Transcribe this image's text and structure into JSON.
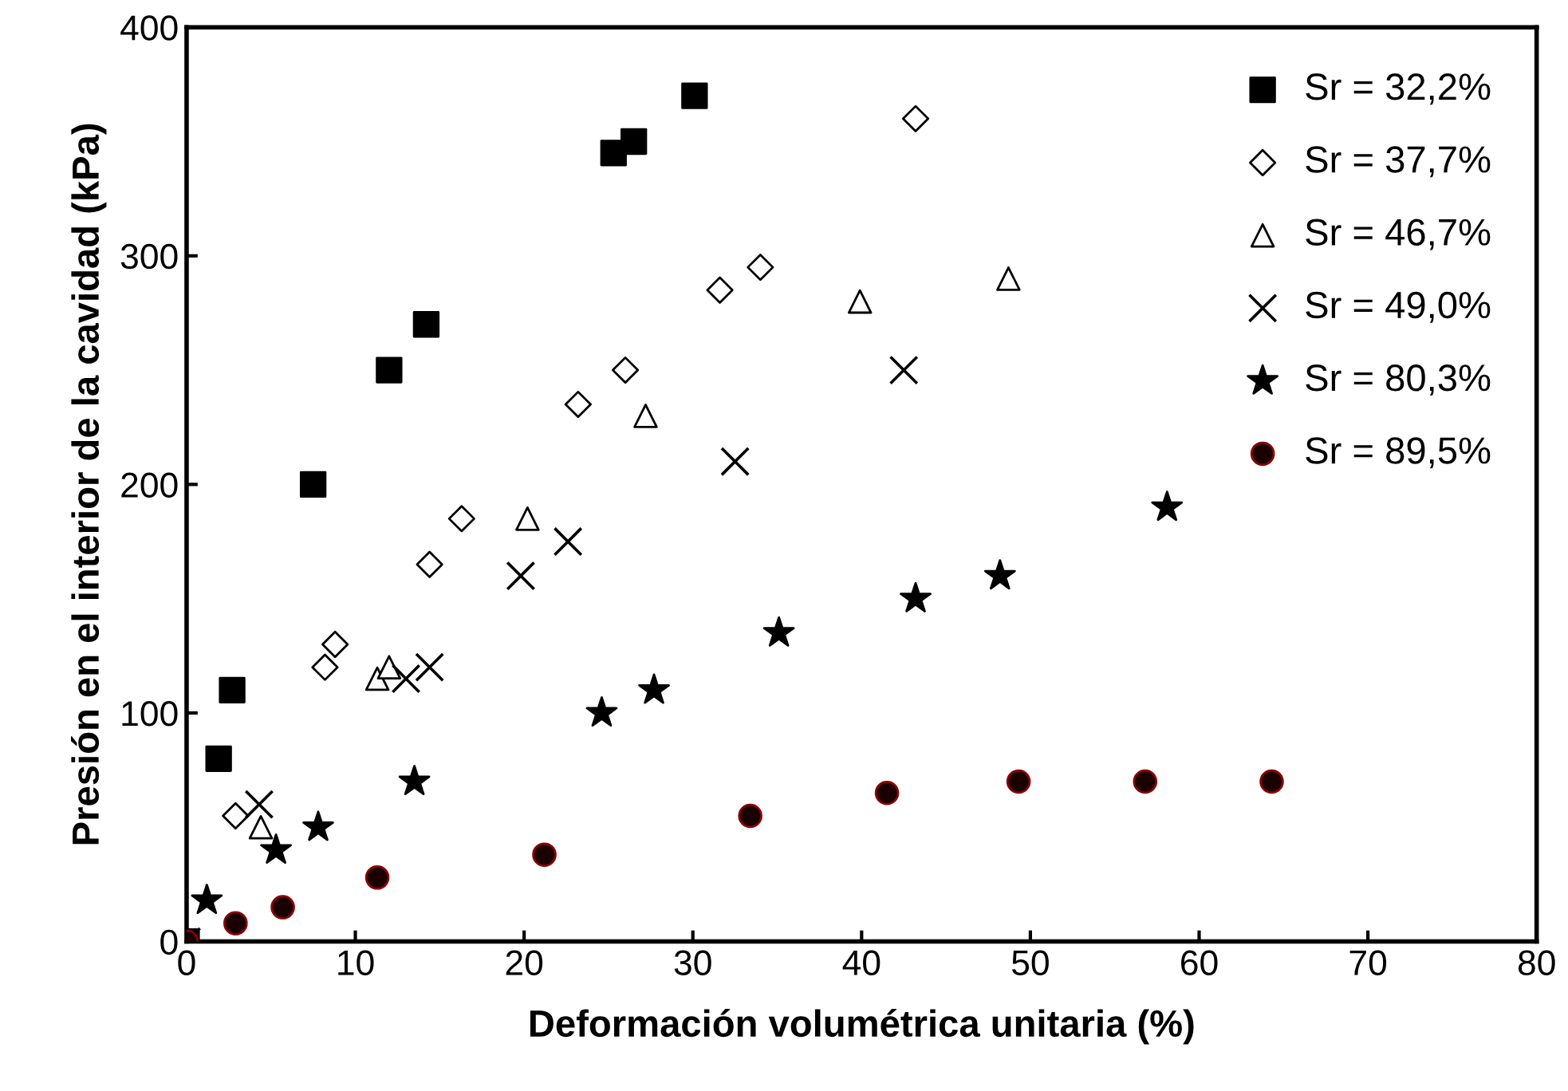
{
  "chart_data": {
    "type": "scatter",
    "xlabel": "Deformación volumétrica unitaria (%)",
    "ylabel": "Presión en el interior de la cavidad (kPa)",
    "xlim": [
      0,
      80
    ],
    "xticks": [
      0,
      10,
      20,
      30,
      40,
      50,
      60,
      70,
      80
    ],
    "ylim": [
      0,
      400
    ],
    "yticks": [
      0,
      100,
      200,
      300,
      400
    ],
    "grid": false,
    "legend": "top right",
    "series": [
      {
        "name": "Sr = 32,2%",
        "color": "#000000",
        "marker": "square",
        "x": [
          0,
          1.9,
          2.7,
          7.5,
          12.0,
          14.2,
          25.3,
          26.5,
          30.1
        ],
        "values": [
          0,
          80,
          110,
          200,
          250,
          270,
          345,
          350,
          370
        ]
      },
      {
        "name": "Sr = 37,7%",
        "color": "#000000",
        "marker": "diamond",
        "x": [
          2.9,
          8.2,
          8.8,
          14.4,
          16.3,
          23.2,
          26.0,
          31.6,
          34.0,
          43.2
        ],
        "values": [
          55,
          120,
          130,
          165,
          185,
          235,
          250,
          285,
          295,
          360
        ]
      },
      {
        "name": "Sr = 46,7%",
        "color": "#000000",
        "marker": "triangle",
        "x": [
          4.4,
          11.3,
          12.0,
          20.2,
          27.2,
          39.9,
          48.7
        ],
        "values": [
          50,
          115,
          120,
          185,
          230,
          280,
          290
        ]
      },
      {
        "name": "Sr = 49,0%",
        "color": "#000000",
        "marker": "cross",
        "x": [
          0,
          4.3,
          13.0,
          14.4,
          19.8,
          22.6,
          32.5,
          42.5
        ],
        "values": [
          0,
          60,
          115,
          120,
          160,
          175,
          210,
          250
        ]
      },
      {
        "name": "Sr = 80,3%",
        "color": "#000000",
        "marker": "star",
        "x": [
          1.2,
          5.3,
          7.8,
          13.5,
          24.6,
          27.7,
          35.1,
          43.2,
          48.2,
          58.1
        ],
        "values": [
          18,
          40,
          50,
          70,
          100,
          110,
          135,
          150,
          160,
          190
        ]
      },
      {
        "name": "Sr = 89,5%",
        "color": "#1a0000",
        "marker": "circle",
        "x": [
          0,
          2.9,
          5.7,
          11.3,
          21.2,
          33.4,
          41.5,
          49.3,
          56.8,
          64.3
        ],
        "values": [
          0,
          8,
          15,
          28,
          38,
          55,
          65,
          70,
          70,
          70
        ]
      }
    ]
  }
}
